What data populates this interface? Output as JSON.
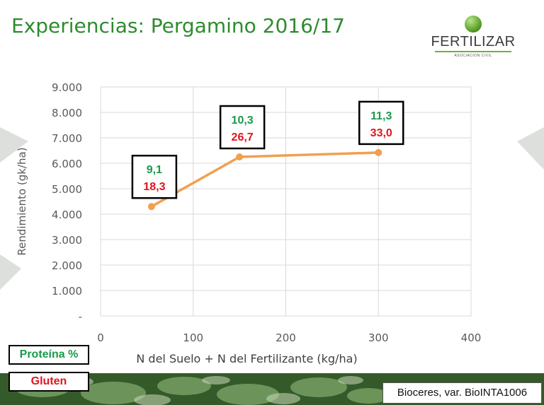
{
  "slide": {
    "title": "Experiencias: Pergamino 2016/17",
    "logo_name": "FERTILIZAR",
    "logo_sub": "ASOCIACION CIVIL",
    "source": "Bioceres, var. BioINTA1006",
    "legend": {
      "protein_label": "Proteína %",
      "gluten_label": "Gluten"
    },
    "colors": {
      "title": "#2e8b2e",
      "series": "#f0a050",
      "protein": "#1a9a4a",
      "gluten": "#e0141e"
    }
  },
  "chart_data": {
    "type": "line",
    "title": "",
    "xlabel": "N del Suelo + N del Fertilizante (kg/ha)",
    "ylabel": "Rendimiento (gk/ha)",
    "xlim": [
      0,
      400
    ],
    "ylim": [
      0,
      9000
    ],
    "x_ticks": [
      "0",
      "100",
      "200",
      "300",
      "400"
    ],
    "y_ticks": [
      "-",
      "1.000",
      "2.000",
      "3.000",
      "4.000",
      "5.000",
      "6.000",
      "7.000",
      "8.000",
      "9.000"
    ],
    "grid": true,
    "series": [
      {
        "x": [
          55,
          150,
          300
        ],
        "values": [
          4300,
          6250,
          6420
        ],
        "color": "#f0a050"
      }
    ],
    "annotations": [
      {
        "protein": "9,1",
        "gluten": "18,3"
      },
      {
        "protein": "10,3",
        "gluten": "26,7"
      },
      {
        "protein": "11,3",
        "gluten": "33,0"
      }
    ]
  }
}
